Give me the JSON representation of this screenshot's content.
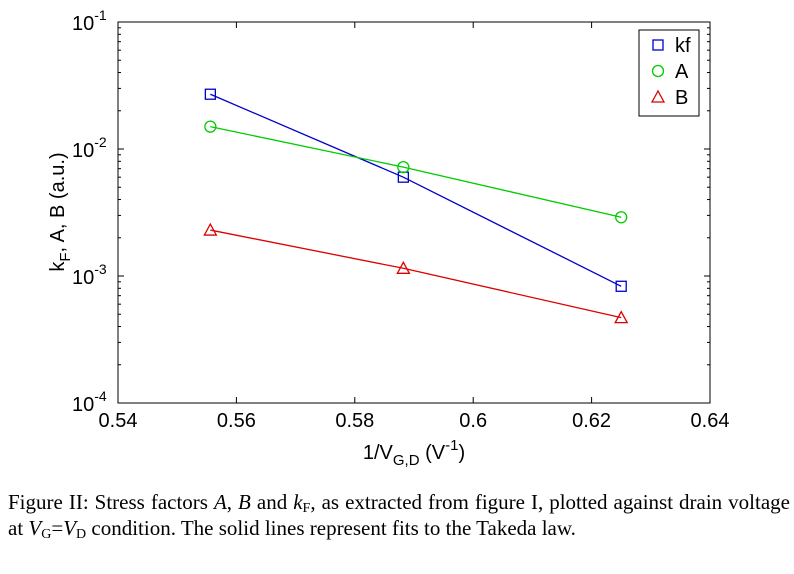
{
  "chart_data": {
    "type": "line",
    "xlabel_main": "1/V",
    "xlabel_sub": "G,D",
    "xlabel_unit_pre": " (V",
    "xlabel_unit_sup": "-1",
    "xlabel_unit_post": ")",
    "ylabel_pre": "k",
    "ylabel_sub": "F",
    "ylabel_post": ", A, B (a.u.)",
    "xlim": [
      0.54,
      0.64
    ],
    "ylim": [
      0.0001,
      0.1
    ],
    "y_scale": "log",
    "grid": false,
    "legend_position": "top-right",
    "x_ticks": [
      {
        "value": 0.54,
        "label": "0.54"
      },
      {
        "value": 0.56,
        "label": "0.56"
      },
      {
        "value": 0.58,
        "label": "0.58"
      },
      {
        "value": 0.6,
        "label": "0.6"
      },
      {
        "value": 0.62,
        "label": "0.62"
      },
      {
        "value": 0.64,
        "label": "0.64"
      }
    ],
    "y_ticks": [
      {
        "value": 0.0001,
        "base": "10",
        "exp": "-4"
      },
      {
        "value": 0.001,
        "base": "10",
        "exp": "-3"
      },
      {
        "value": 0.01,
        "base": "10",
        "exp": "-2"
      },
      {
        "value": 0.1,
        "base": "10",
        "exp": "-1"
      }
    ],
    "series": [
      {
        "name": "kf",
        "color": "#0000cc",
        "marker": "square",
        "x": [
          0.5556,
          0.5882,
          0.625
        ],
        "y": [
          0.027,
          0.006,
          0.00083
        ]
      },
      {
        "name": "A",
        "color": "#00cc00",
        "marker": "circle",
        "x": [
          0.5556,
          0.5882,
          0.625
        ],
        "y": [
          0.015,
          0.0072,
          0.0029
        ]
      },
      {
        "name": "B",
        "color": "#dd0000",
        "marker": "triangle",
        "x": [
          0.5556,
          0.5882,
          0.625
        ],
        "y": [
          0.0023,
          0.00115,
          0.00047
        ]
      }
    ]
  },
  "caption": {
    "p1": "Figure II: Stress factors ",
    "i1": "A",
    "p2": ", ",
    "i2": "B",
    "p3": " and ",
    "i3": "k",
    "sub3": "F",
    "p4": ", as extracted from figure I, plotted against drain voltage at ",
    "i4": "V",
    "sub4": "G",
    "p5": "=",
    "i5": "V",
    "sub5": "D",
    "p6": " condition. The solid lines represent fits to the Takeda law."
  }
}
